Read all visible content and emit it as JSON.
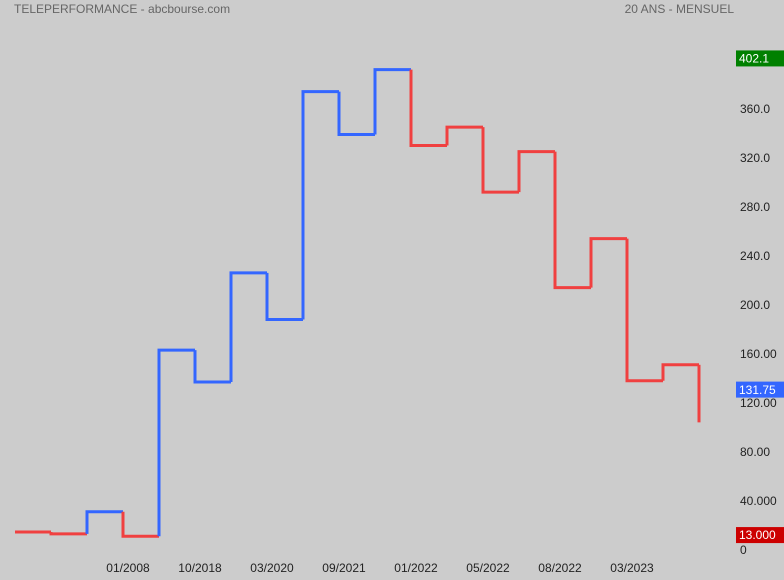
{
  "chart_data": {
    "type": "step",
    "title": "TELEPERFORMANCE - abcbourse.com",
    "subtitle": "20 ANS - MENSUEL",
    "categories": [
      null,
      null,
      null,
      "01/2008",
      null,
      "10/2018",
      null,
      "03/2020",
      null,
      "09/2021",
      null,
      "01/2022",
      null,
      "05/2022",
      null,
      "08/2022",
      null,
      "03/2023",
      null,
      null
    ],
    "values": [
      15.5,
      14,
      32,
      12,
      164,
      138,
      227,
      189,
      375,
      340,
      393,
      331,
      346,
      293,
      326,
      215,
      255,
      139,
      152,
      105
    ],
    "colors": [
      "#f04040",
      "#f04040",
      "#3366ff",
      "#f04040",
      "#3366ff",
      "#3366ff",
      "#3366ff",
      "#3366ff",
      "#3366ff",
      "#3366ff",
      "#3366ff",
      "#f04040",
      "#f04040",
      "#f04040",
      "#f04040",
      "#f04040",
      "#f04040",
      "#f04040",
      "#f04040",
      "#f04040"
    ],
    "ylim": [
      0,
      440
    ],
    "yticks": [
      0,
      {
        "value": 40,
        "label": "40.000"
      },
      {
        "value": 80,
        "label": "80.00"
      },
      {
        "value": 120,
        "label": "120.00"
      },
      {
        "value": 160,
        "label": "160.00"
      },
      {
        "value": 200,
        "label": "200.0"
      },
      {
        "value": 240,
        "label": "240.0"
      },
      {
        "value": 280,
        "label": "280.0"
      },
      {
        "value": 320,
        "label": "320.0"
      },
      {
        "value": 360,
        "label": "360.0"
      }
    ],
    "markers": [
      {
        "value": 402.1,
        "label": "402.1",
        "color": "#008000"
      },
      {
        "value": 131.75,
        "label": "131.75",
        "color": "#3366ff"
      },
      {
        "value": 13,
        "label": "13.000",
        "color": "#cc0000"
      }
    ]
  }
}
